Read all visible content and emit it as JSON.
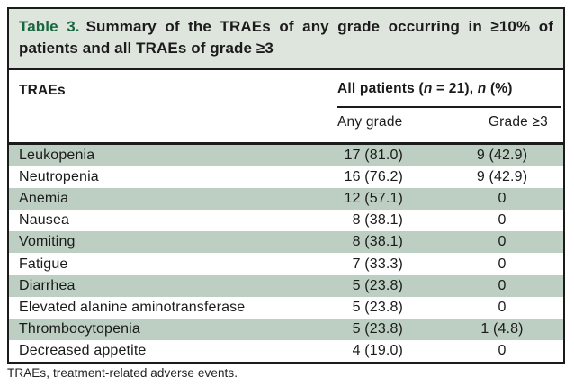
{
  "caption": {
    "label": "Table 3.",
    "text": "Summary of the TRAEs of any grade occurring in ≥10% of patients and all TRAEs of grade ≥3"
  },
  "table": {
    "col1_header": "TRAEs",
    "group_header": {
      "part1": "All patients (",
      "n_italic1": "n",
      "part2": " = 21), ",
      "n_italic2": "n",
      "part3": " (%)"
    },
    "subheaders": [
      "Any grade",
      "Grade ≥3"
    ],
    "rows": [
      {
        "name": "Leukopenia",
        "any_grade": "17 (81.0)",
        "grade_ge3": "9 (42.9)"
      },
      {
        "name": "Neutropenia",
        "any_grade": "16 (76.2)",
        "grade_ge3": "9 (42.9)"
      },
      {
        "name": "Anemia",
        "any_grade": "12 (57.1)",
        "grade_ge3": "0"
      },
      {
        "name": "Nausea",
        "any_grade": "8 (38.1)",
        "grade_ge3": "0"
      },
      {
        "name": "Vomiting",
        "any_grade": "8 (38.1)",
        "grade_ge3": "0"
      },
      {
        "name": "Fatigue",
        "any_grade": "7 (33.3)",
        "grade_ge3": "0"
      },
      {
        "name": "Diarrhea",
        "any_grade": "5 (23.8)",
        "grade_ge3": "0"
      },
      {
        "name": "Elevated alanine aminotransferase",
        "any_grade": "5 (23.8)",
        "grade_ge3": "0"
      },
      {
        "name": "Thrombocytopenia",
        "any_grade": "5 (23.8)",
        "grade_ge3": "1 (4.8)"
      },
      {
        "name": "Decreased appetite",
        "any_grade": "4 (19.0)",
        "grade_ge3": "0"
      }
    ]
  },
  "footnote": "TRAEs, treatment-related adverse events.",
  "colors": {
    "accent_green": "#17663f",
    "caption_band_bg": "#dee5dd",
    "row_shade": "#bccfc2",
    "border": "#1b1b1b"
  }
}
